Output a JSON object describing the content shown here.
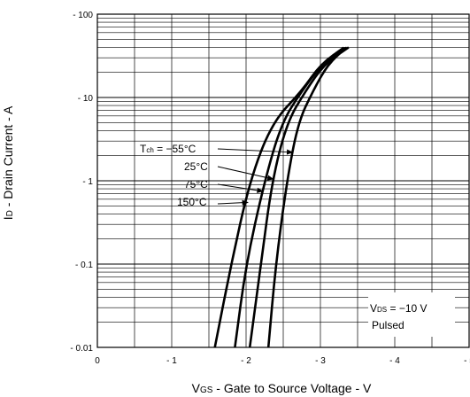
{
  "chart_data": {
    "type": "line",
    "ylabel": {
      "prefix": "I",
      "sub": "D",
      "rest": " - Drain Current - A"
    },
    "xlabel": {
      "prefix": "V",
      "sub": "GS",
      "rest": " - Gate to Source Voltage - V"
    },
    "xlim": [
      0,
      -5
    ],
    "ylim": [
      -0.01,
      -100
    ],
    "yscale": "log",
    "grid": true,
    "x_tick_labels": [
      "0",
      "- 1",
      "- 2",
      "- 3",
      "- 4",
      "- 5"
    ],
    "x_tick_values": [
      0,
      -1,
      -2,
      -3,
      -4,
      -5
    ],
    "y_tick_labels": [
      "- 0.01",
      "- 0.1",
      "- 1",
      "- 10",
      "- 100"
    ],
    "y_tick_values": [
      -0.01,
      -0.1,
      -1,
      -10,
      -100
    ],
    "annotation": {
      "tch_prefix": "T",
      "tch_sub": "ch",
      "tch_rest": " = −55°C"
    },
    "condition": {
      "v_prefix": "V",
      "v_sub": "DS",
      "v_rest": " = −10 V",
      "line2": "Pulsed"
    },
    "series": [
      {
        "name": "−55°C",
        "x": [
          -2.3,
          -2.4,
          -2.55,
          -2.7,
          -2.9,
          -3.1,
          -3.35
        ],
        "y": [
          -0.01,
          -0.1,
          -1,
          -5,
          -12,
          -25,
          -40
        ]
      },
      {
        "name": "25°C",
        "x": [
          -2.05,
          -2.2,
          -2.35,
          -2.55,
          -2.8,
          -3.05,
          -3.38
        ],
        "y": [
          -0.01,
          -0.1,
          -1,
          -5,
          -12,
          -25,
          -40
        ]
      },
      {
        "name": "75°C",
        "x": [
          -1.85,
          -2.0,
          -2.25,
          -2.48,
          -2.75,
          -3.02,
          -3.36
        ],
        "y": [
          -0.01,
          -0.1,
          -1,
          -5,
          -12,
          -25,
          -40
        ]
      },
      {
        "name": "150°C",
        "x": [
          -1.58,
          -1.8,
          -2.05,
          -2.35,
          -2.75,
          -3.0,
          -3.32
        ],
        "y": [
          -0.01,
          -0.1,
          -1,
          -5,
          -12,
          -25,
          -40
        ]
      }
    ],
    "labels": [
      "25°C",
      "75°C",
      "150°C"
    ]
  }
}
